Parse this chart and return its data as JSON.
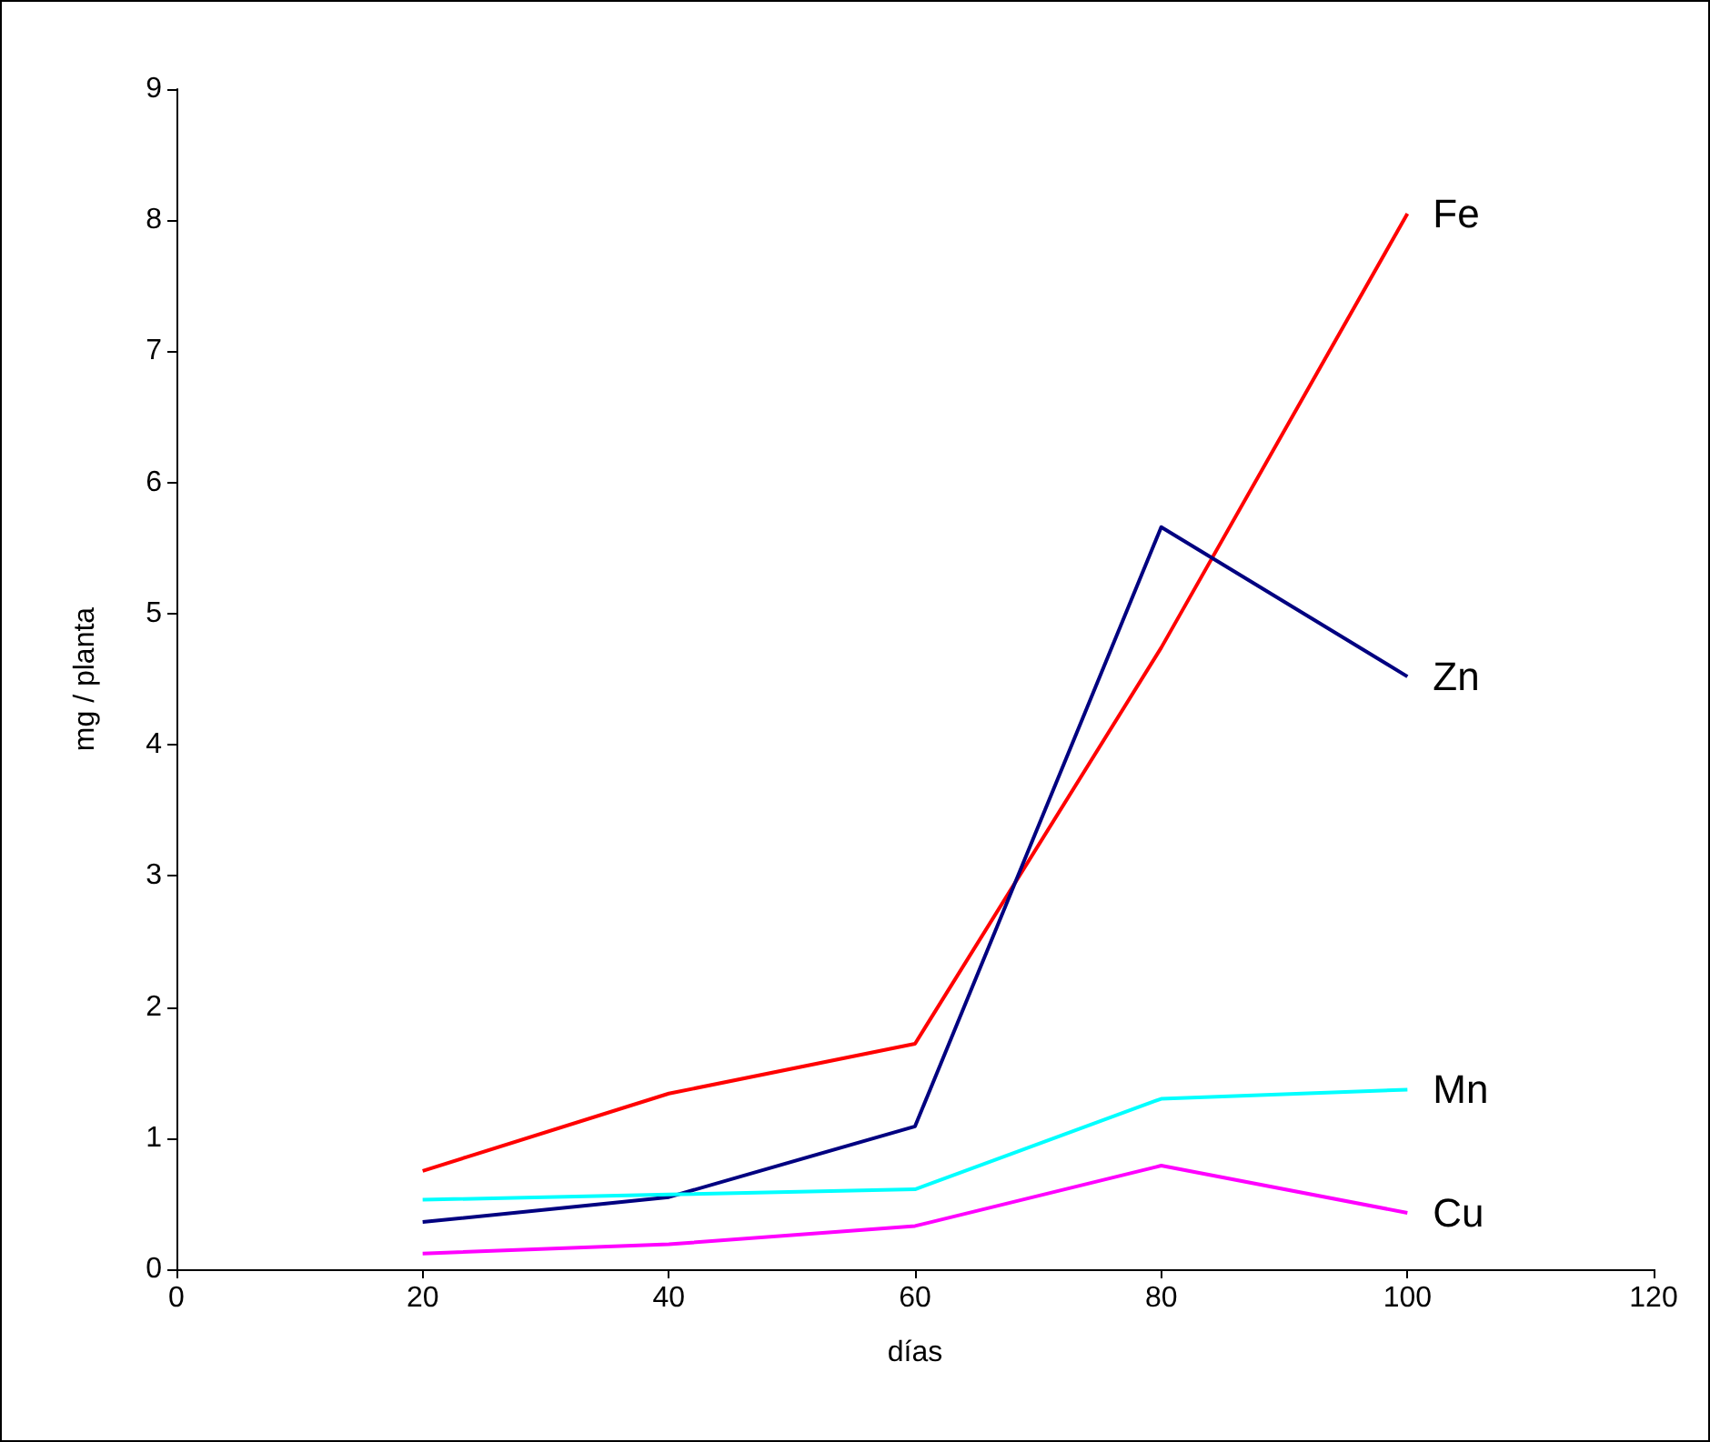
{
  "chart_data": {
    "type": "line",
    "xlabel": "días",
    "ylabel": "mg / planta",
    "x": [
      20,
      40,
      60,
      80,
      100
    ],
    "series": [
      {
        "name": "Fe",
        "color": "#ff0000",
        "values": [
          0.75,
          1.34,
          1.72,
          4.74,
          8.05
        ]
      },
      {
        "name": "Zn",
        "color": "#000080",
        "values": [
          0.36,
          0.55,
          1.09,
          5.66,
          4.52
        ]
      },
      {
        "name": "Mn",
        "color": "#00ffff",
        "values": [
          0.53,
          0.57,
          0.61,
          1.3,
          1.37
        ]
      },
      {
        "name": "Cu",
        "color": "#ff00ff",
        "values": [
          0.12,
          0.19,
          0.33,
          0.79,
          0.43
        ]
      }
    ],
    "xlim": [
      0,
      120
    ],
    "xticks": [
      0,
      20,
      40,
      60,
      80,
      100,
      120
    ],
    "ylim": [
      0,
      9
    ],
    "yticks": [
      0,
      1,
      2,
      3,
      4,
      5,
      6,
      7,
      8,
      9
    ],
    "grid": false,
    "legend": false,
    "marker": "none",
    "line_style": "solid"
  }
}
